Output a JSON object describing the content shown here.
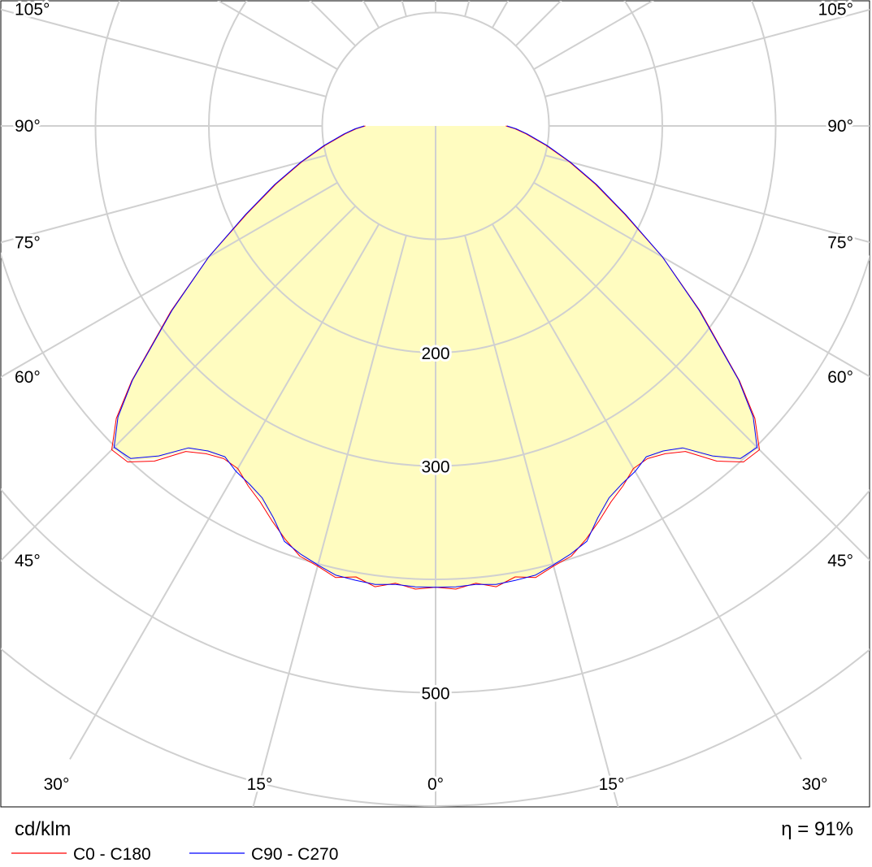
{
  "chart_data": {
    "type": "polar",
    "unit_label": "cd/klm",
    "efficiency_label": "η = 91%",
    "radial_range": [
      0,
      600
    ],
    "radial_grid": [
      100,
      200,
      300,
      400,
      500,
      600
    ],
    "radial_labels": [
      {
        "value": 200,
        "text": "200"
      },
      {
        "value": 300,
        "text": "300"
      },
      {
        "value": 500,
        "text": "500"
      }
    ],
    "angle_grid_step_deg": 15,
    "angle_labels": [
      {
        "text": "105°",
        "angle": 105,
        "side": "both"
      },
      {
        "text": "90°",
        "angle": 90,
        "side": "both"
      },
      {
        "text": "75°",
        "angle": 75,
        "side": "both"
      },
      {
        "text": "60°",
        "angle": 60,
        "side": "both"
      },
      {
        "text": "45°",
        "angle": 45,
        "side": "both"
      },
      {
        "text": "30°",
        "angle": 30,
        "side": "both"
      },
      {
        "text": "15°",
        "angle": 15,
        "side": "both"
      },
      {
        "text": "0°",
        "angle": 0,
        "side": "center"
      }
    ],
    "fill_color": "#fffcc0",
    "series": [
      {
        "name": "C0 - C180",
        "color": "#ff0000",
        "angles": [
          0,
          2.5,
          5,
          7.5,
          10,
          12.5,
          15,
          17.5,
          20,
          22.5,
          25,
          27.5,
          30,
          32.5,
          35,
          37.5,
          40,
          42.5,
          45,
          47.5,
          50,
          55,
          60,
          65,
          70,
          75,
          80,
          85,
          88,
          90
        ],
        "values": [
          407,
          409,
          405,
          410,
          404,
          408,
          402,
          398,
          388,
          377,
          366,
          358,
          349,
          348,
          353,
          362,
          386,
          402,
          404,
          382,
          350,
          285,
          231,
          184,
          150,
          122,
          99,
          80,
          70,
          62
        ]
      },
      {
        "name": "C90 - C270",
        "color": "#0000ff",
        "angles": [
          0,
          2.5,
          5,
          7.5,
          10,
          12.5,
          15,
          17.5,
          20,
          22.5,
          25,
          27.5,
          30,
          32.5,
          35,
          37.5,
          40,
          42.5,
          45,
          47.5,
          50,
          55,
          60,
          65,
          70,
          75,
          80,
          85,
          88,
          90
        ],
        "values": [
          407,
          407,
          406,
          408,
          407,
          406,
          401,
          396,
          390,
          374,
          362,
          356,
          352,
          346,
          350,
          358,
          380,
          398,
          401,
          380,
          349,
          284,
          231,
          185,
          151,
          123,
          100,
          81,
          71,
          63
        ]
      }
    ]
  }
}
